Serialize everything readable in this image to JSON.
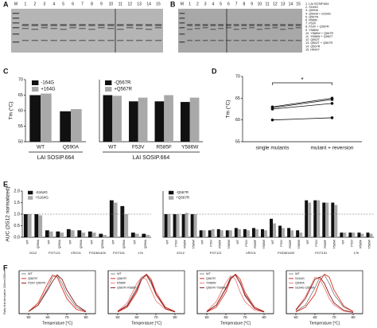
{
  "panel_labels": [
    "A",
    "B",
    "C",
    "D",
    "E",
    "F"
  ],
  "gel_a": {
    "lanes": [
      "M",
      "1",
      "2",
      "3",
      "4",
      "5",
      "6",
      "7",
      "8",
      "9",
      "10",
      "11",
      "12",
      "13",
      "14",
      "15"
    ]
  },
  "gel_b": {
    "lanes": [
      "M",
      "1",
      "2",
      "3",
      "4",
      "5",
      "6",
      "7",
      "8",
      "9",
      "10",
      "11",
      "12",
      "13",
      "14",
      "15"
    ],
    "legend": [
      "1. LAI SOSIP.664",
      "2. S164G",
      "3. Q590A",
      "4. Q590A + S164G",
      "5. Q567R",
      "6. R585F",
      "7. F53V",
      "8. F53V + Q567R",
      "9. Y586W",
      "10. Y586W + Q567R",
      "11. Y586W + Q562T",
      "12. Q562T",
      "13. Q562T + Q567R",
      "14. Q567R",
      "15. H643Y"
    ]
  },
  "chart_data": [
    {
      "type": "bar",
      "y_label": "Tm (°C)",
      "categories": [
        "WT",
        "Q590A"
      ],
      "group_label": "LAI SOSIP.664",
      "series": [
        {
          "name": "-164G",
          "color": "#111111",
          "values": [
            65,
            59.8
          ]
        },
        {
          "name": "+164G",
          "color": "#a9a9a9",
          "values": [
            65.5,
            60.5
          ]
        }
      ],
      "ylim": [
        50,
        70
      ],
      "yticks": [
        50,
        55,
        60,
        65,
        70
      ]
    },
    {
      "type": "bar",
      "categories": [
        "WT",
        "F53V",
        "R585F",
        "Y586W"
      ],
      "group_label": "LAI SOSIP.664",
      "series": [
        {
          "name": "-Q567R",
          "color": "#111111",
          "values": [
            65,
            63,
            63,
            62.8
          ]
        },
        {
          "name": "+Q567R",
          "color": "#a9a9a9",
          "values": [
            64.8,
            64.2,
            65,
            64.2
          ]
        }
      ],
      "ylim": [
        50,
        70
      ]
    },
    {
      "type": "paired",
      "y_label": "Tm (°C)",
      "categories": [
        "single mutants",
        "mutant + reversion"
      ],
      "annotation": "*",
      "series": [
        {
          "color": "#111111",
          "values": [
            62.5,
            63.8
          ]
        },
        {
          "color": "#111111",
          "values": [
            62.8,
            64.7
          ]
        },
        {
          "color": "#111111",
          "values": [
            63,
            65
          ]
        },
        {
          "color": "#111111",
          "values": [
            60,
            60.5
          ]
        }
      ],
      "ylim": [
        55,
        70
      ],
      "yticks": [
        55,
        60,
        65,
        70
      ]
    },
    {
      "type": "bar",
      "y_label": "AUC (2G12 normalized)",
      "reference": 1,
      "groups": [
        "2G12",
        "PGT121",
        "VRC01",
        "PGDM1400",
        "PGT151",
        "17b"
      ],
      "categories": [
        "WT",
        "Q590A",
        "WT",
        "Q590A",
        "WT",
        "Q590A",
        "WT",
        "Q590A",
        "WT",
        "Q590A",
        "WT",
        "Q590A"
      ],
      "series": [
        {
          "name": "-S164G",
          "color": "#111111",
          "values": [
            1.0,
            1.0,
            0.3,
            0.25,
            0.35,
            0.3,
            0.25,
            0.15,
            1.6,
            1.35,
            0.2,
            0.15
          ]
        },
        {
          "name": "+S164G",
          "color": "#a9a9a9",
          "values": [
            1.0,
            0.95,
            0.25,
            0.2,
            0.3,
            0.2,
            0.2,
            0.1,
            1.5,
            1.0,
            0.15,
            0.1
          ]
        }
      ],
      "ylim": [
        0,
        2
      ],
      "yticks": [
        {
          "value": 0,
          "label": "0.0"
        },
        {
          "value": 0.5,
          "label": "0.5"
        },
        {
          "value": 1,
          "label": "1.0"
        },
        {
          "value": 1.5,
          "label": "1.5"
        },
        {
          "value": 2,
          "label": "2.0"
        }
      ]
    },
    {
      "type": "bar",
      "reference": 1,
      "groups": [
        "2G12",
        "PGT121",
        "VRC01",
        "PGDM1400",
        "PGT151",
        "17b"
      ],
      "categories": [
        "WT",
        "F53V",
        "R585F",
        "Y586W",
        "WT",
        "F53V",
        "R585F",
        "Y586W",
        "WT",
        "F53V",
        "R585F",
        "Y586W",
        "WT",
        "F53V",
        "R585F",
        "Y586W",
        "WT",
        "F53V",
        "R585F",
        "Y586W",
        "WT",
        "F53V",
        "R585F",
        "Y586W"
      ],
      "series": [
        {
          "name": "-Q567R",
          "color": "#111111",
          "values": [
            1.0,
            1.0,
            1.0,
            1.0,
            0.3,
            0.3,
            0.35,
            0.3,
            0.4,
            0.35,
            0.4,
            0.35,
            0.8,
            0.5,
            0.4,
            0.3,
            1.6,
            1.6,
            1.5,
            1.5,
            0.2,
            0.2,
            0.2,
            0.2
          ]
        },
        {
          "name": "+Q567R",
          "color": "#a9a9a9",
          "values": [
            1.0,
            1.0,
            1.05,
            1.0,
            0.3,
            0.35,
            0.3,
            0.3,
            0.35,
            0.3,
            0.35,
            0.3,
            0.6,
            0.4,
            0.3,
            0.2,
            1.5,
            1.6,
            1.5,
            1.4,
            0.2,
            0.2,
            0.15,
            0.15
          ]
        }
      ],
      "ylim": [
        0,
        2
      ]
    },
    {
      "type": "line",
      "y_label": "Ratio first derivative 330nm/350nm",
      "x_label": "Temperature [°C]",
      "x": [
        50,
        55,
        60,
        62.5,
        65,
        67.5,
        70,
        75,
        80
      ],
      "xlim": [
        45,
        85
      ],
      "xticks": [
        50,
        60,
        70,
        80
      ],
      "ylim": [
        0,
        1
      ],
      "series": [
        {
          "name": "WT",
          "color": "#888888",
          "values": [
            0.05,
            0.2,
            0.6,
            0.85,
            0.9,
            0.7,
            0.45,
            0.15,
            0.05
          ]
        },
        {
          "name": "Q567R",
          "color": "#e0301e",
          "values": [
            0.05,
            0.25,
            0.7,
            0.9,
            0.85,
            0.6,
            0.35,
            0.1,
            0.04
          ]
        },
        {
          "name": "F53V Q567R",
          "color": "#8b1a1a",
          "values": [
            0.05,
            0.2,
            0.55,
            0.75,
            0.9,
            0.8,
            0.55,
            0.2,
            0.05
          ]
        }
      ]
    },
    {
      "type": "line",
      "x_label": "Temperature [°C]",
      "x": [
        50,
        55,
        60,
        62.5,
        65,
        67.5,
        70,
        75,
        80
      ],
      "xlim": [
        45,
        85
      ],
      "xticks": [
        50,
        60,
        70,
        80
      ],
      "ylim": [
        0,
        1
      ],
      "series": [
        {
          "name": "WT",
          "color": "#888888",
          "values": [
            0.05,
            0.2,
            0.6,
            0.85,
            0.9,
            0.7,
            0.45,
            0.15,
            0.05
          ]
        },
        {
          "name": "Q567R",
          "color": "#e0301e",
          "values": [
            0.04,
            0.15,
            0.5,
            0.8,
            0.92,
            0.8,
            0.5,
            0.15,
            0.05
          ]
        },
        {
          "name": "R585F",
          "color": "#f08080",
          "values": [
            0.06,
            0.25,
            0.7,
            0.85,
            0.8,
            0.55,
            0.3,
            0.1,
            0.04
          ]
        },
        {
          "name": "Q567R R585F",
          "color": "#8b1a1a",
          "values": [
            0.05,
            0.18,
            0.55,
            0.8,
            0.9,
            0.75,
            0.45,
            0.12,
            0.04
          ]
        }
      ]
    },
    {
      "type": "line",
      "x_label": "Temperature [°C]",
      "x": [
        50,
        55,
        60,
        62.5,
        65,
        67.5,
        70,
        75,
        80
      ],
      "xlim": [
        45,
        85
      ],
      "xticks": [
        50,
        60,
        70,
        80
      ],
      "ylim": [
        0,
        1
      ],
      "series": [
        {
          "name": "WT",
          "color": "#888888",
          "values": [
            0.05,
            0.2,
            0.6,
            0.85,
            0.9,
            0.7,
            0.45,
            0.15,
            0.05
          ]
        },
        {
          "name": "Q567R",
          "color": "#e0301e",
          "values": [
            0.04,
            0.15,
            0.5,
            0.8,
            0.92,
            0.8,
            0.5,
            0.15,
            0.05
          ]
        },
        {
          "name": "Y586W",
          "color": "#f08080",
          "values": [
            0.06,
            0.28,
            0.72,
            0.88,
            0.8,
            0.5,
            0.28,
            0.08,
            0.04
          ]
        },
        {
          "name": "Q567R Y586W",
          "color": "#8b1a1a",
          "values": [
            0.05,
            0.2,
            0.58,
            0.82,
            0.9,
            0.72,
            0.42,
            0.12,
            0.04
          ]
        }
      ]
    },
    {
      "type": "line",
      "x_label": "Temperature [°C]",
      "x": [
        50,
        55,
        60,
        62.5,
        65,
        67.5,
        70,
        75,
        80
      ],
      "xlim": [
        45,
        85
      ],
      "xticks": [
        50,
        60,
        70,
        80
      ],
      "ylim": [
        0,
        1
      ],
      "series": [
        {
          "name": "WT",
          "color": "#888888",
          "values": [
            0.05,
            0.2,
            0.6,
            0.85,
            0.9,
            0.7,
            0.45,
            0.15,
            0.05
          ]
        },
        {
          "name": "S164G",
          "color": "#e0301e",
          "values": [
            0.04,
            0.15,
            0.45,
            0.75,
            0.92,
            0.85,
            0.55,
            0.18,
            0.05
          ]
        },
        {
          "name": "Q590A",
          "color": "#f08080",
          "values": [
            0.1,
            0.4,
            0.85,
            0.8,
            0.6,
            0.35,
            0.2,
            0.06,
            0.03
          ]
        },
        {
          "name": "S164G Q590A",
          "color": "#8b1a1a",
          "values": [
            0.08,
            0.35,
            0.8,
            0.85,
            0.7,
            0.45,
            0.25,
            0.08,
            0.03
          ]
        }
      ]
    }
  ]
}
